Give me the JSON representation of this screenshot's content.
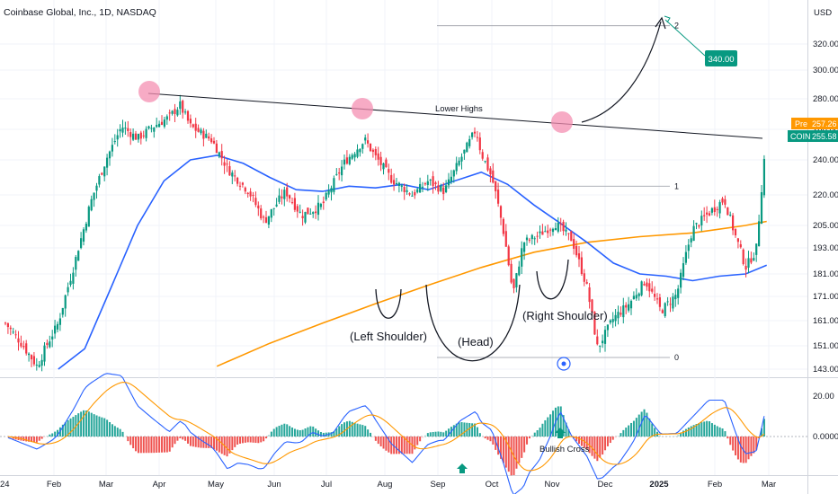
{
  "header": {
    "title": "Coinbase Global, Inc., 1D, NASDAQ",
    "year_stub": "24"
  },
  "currency": "USD",
  "tags": {
    "pre": {
      "label": "Pre",
      "value": "257.26",
      "color": "#ff9800"
    },
    "coin": {
      "label": "COIN",
      "value": "255.58",
      "color": "#089981"
    }
  },
  "target_badge": {
    "value": "340.00",
    "color": "#089981"
  },
  "colors": {
    "up": "#089981",
    "down": "#f23645",
    "ma_fast": "#2962ff",
    "ma_slow": "#ff9800",
    "trendline": "#131722",
    "highlight": "#f48fb1",
    "macd_line": "#2962ff",
    "signal_line": "#ff9800"
  },
  "chart_data": [
    {
      "type": "candlestick",
      "ticker": "COIN",
      "interval": "1D",
      "y_ticks": [
        "320.00",
        "300.00",
        "280.00",
        "260.00",
        "240.00",
        "220.00",
        "205.00",
        "193.00",
        "181.00",
        "171.00",
        "161.00",
        "151.00",
        "143.00"
      ],
      "x_ticks": [
        "Feb",
        "Mar",
        "Apr",
        "May",
        "Jun",
        "Jul",
        "Aug",
        "Sep",
        "Oct",
        "Nov",
        "Dec",
        "2025",
        "Feb",
        "Mar"
      ],
      "ylim": [
        140,
        340
      ],
      "series_close_path": [
        {
          "t": 0.0,
          "v": 160
        },
        {
          "t": 0.3,
          "v": 152
        },
        {
          "t": 0.6,
          "v": 144
        },
        {
          "t": 1.0,
          "v": 160
        },
        {
          "t": 1.3,
          "v": 185
        },
        {
          "t": 1.6,
          "v": 215
        },
        {
          "t": 1.9,
          "v": 240
        },
        {
          "t": 2.2,
          "v": 262
        },
        {
          "t": 2.5,
          "v": 254
        },
        {
          "t": 2.8,
          "v": 262
        },
        {
          "t": 3.1,
          "v": 268
        },
        {
          "t": 3.3,
          "v": 276
        },
        {
          "t": 3.5,
          "v": 262
        },
        {
          "t": 3.9,
          "v": 253
        },
        {
          "t": 4.2,
          "v": 235
        },
        {
          "t": 4.6,
          "v": 222
        },
        {
          "t": 4.9,
          "v": 207
        },
        {
          "t": 5.3,
          "v": 222
        },
        {
          "t": 5.6,
          "v": 210
        },
        {
          "t": 6.0,
          "v": 215
        },
        {
          "t": 6.4,
          "v": 238
        },
        {
          "t": 6.8,
          "v": 253
        },
        {
          "t": 7.0,
          "v": 242
        },
        {
          "t": 7.3,
          "v": 229
        },
        {
          "t": 7.7,
          "v": 220
        },
        {
          "t": 8.0,
          "v": 228
        },
        {
          "t": 8.3,
          "v": 222
        },
        {
          "t": 8.6,
          "v": 240
        },
        {
          "t": 8.9,
          "v": 260
        },
        {
          "t": 9.0,
          "v": 244
        },
        {
          "t": 9.2,
          "v": 230
        },
        {
          "t": 9.4,
          "v": 205
        },
        {
          "t": 9.6,
          "v": 172
        },
        {
          "t": 9.8,
          "v": 196
        },
        {
          "t": 10.1,
          "v": 200
        },
        {
          "t": 10.4,
          "v": 206
        },
        {
          "t": 10.7,
          "v": 198
        },
        {
          "t": 11.0,
          "v": 175
        },
        {
          "t": 11.2,
          "v": 150
        },
        {
          "t": 11.5,
          "v": 162
        },
        {
          "t": 11.8,
          "v": 168
        },
        {
          "t": 12.1,
          "v": 178
        },
        {
          "t": 12.4,
          "v": 165
        },
        {
          "t": 12.7,
          "v": 172
        },
        {
          "t": 13.0,
          "v": 203
        },
        {
          "t": 13.3,
          "v": 211
        },
        {
          "t": 13.6,
          "v": 218
        },
        {
          "t": 13.8,
          "v": 200
        },
        {
          "t": 14.0,
          "v": 184
        },
        {
          "t": 14.2,
          "v": 192
        },
        {
          "t": 14.3,
          "v": 223
        },
        {
          "t": 14.4,
          "v": 256
        }
      ],
      "ma_fast": [
        {
          "t": 1.0,
          "v": 143
        },
        {
          "t": 1.5,
          "v": 150
        },
        {
          "t": 2.0,
          "v": 175
        },
        {
          "t": 2.5,
          "v": 205
        },
        {
          "t": 3.0,
          "v": 228
        },
        {
          "t": 3.5,
          "v": 240
        },
        {
          "t": 4.0,
          "v": 243
        },
        {
          "t": 4.5,
          "v": 238
        },
        {
          "t": 5.0,
          "v": 230
        },
        {
          "t": 5.5,
          "v": 223
        },
        {
          "t": 6.0,
          "v": 222
        },
        {
          "t": 6.5,
          "v": 225
        },
        {
          "t": 7.0,
          "v": 224
        },
        {
          "t": 7.5,
          "v": 226
        },
        {
          "t": 8.0,
          "v": 223
        },
        {
          "t": 8.5,
          "v": 228
        },
        {
          "t": 9.0,
          "v": 233
        },
        {
          "t": 9.5,
          "v": 226
        },
        {
          "t": 10.0,
          "v": 215
        },
        {
          "t": 10.5,
          "v": 206
        },
        {
          "t": 11.0,
          "v": 196
        },
        {
          "t": 11.5,
          "v": 186
        },
        {
          "t": 12.0,
          "v": 181
        },
        {
          "t": 12.5,
          "v": 180
        },
        {
          "t": 13.0,
          "v": 178
        },
        {
          "t": 13.5,
          "v": 180
        },
        {
          "t": 14.0,
          "v": 181
        },
        {
          "t": 14.4,
          "v": 185
        }
      ],
      "ma_slow": [
        {
          "t": 4.0,
          "v": 144
        },
        {
          "t": 5.0,
          "v": 152
        },
        {
          "t": 6.0,
          "v": 160
        },
        {
          "t": 7.0,
          "v": 168
        },
        {
          "t": 8.0,
          "v": 176
        },
        {
          "t": 9.0,
          "v": 184
        },
        {
          "t": 10.0,
          "v": 191
        },
        {
          "t": 11.0,
          "v": 196
        },
        {
          "t": 12.0,
          "v": 199
        },
        {
          "t": 13.0,
          "v": 201
        },
        {
          "t": 14.0,
          "v": 205
        },
        {
          "t": 14.4,
          "v": 207
        }
      ],
      "fib_levels": [
        {
          "label": "2",
          "v": 334
        },
        {
          "label": "1",
          "v": 225
        },
        {
          "label": "0",
          "v": 147
        }
      ],
      "annotations": [
        {
          "text": "Lower Highs"
        },
        {
          "text": "(Left Shoulder)"
        },
        {
          "text": "(Head)"
        },
        {
          "text": "(Right Shoulder)"
        }
      ]
    },
    {
      "type": "macd",
      "y_ticks": [
        "20.00",
        "0.0000"
      ],
      "annotations": [
        {
          "text": "Bullish Cross"
        }
      ]
    }
  ]
}
